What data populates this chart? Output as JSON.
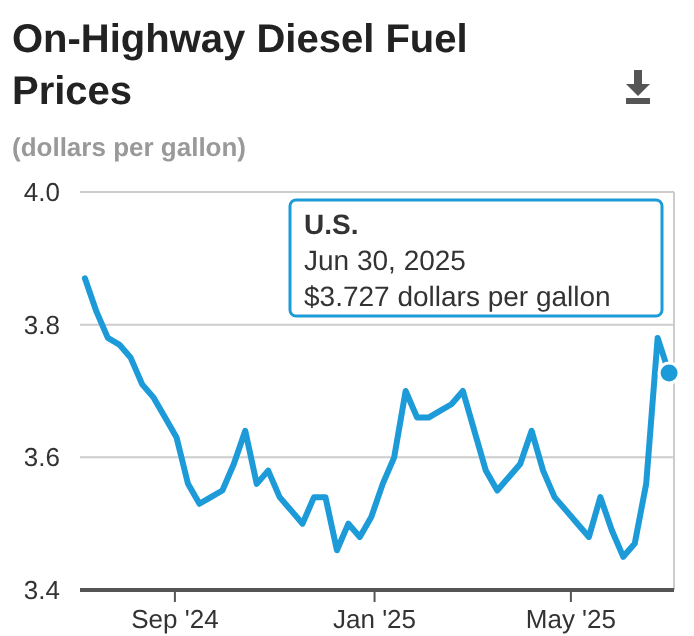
{
  "chart_data": {
    "type": "line",
    "title": "On-Highway Diesel Fuel Prices",
    "ylabel": "(dollars per gallon)",
    "x": [
      "2024-07-08",
      "2024-07-15",
      "2024-07-22",
      "2024-07-29",
      "2024-08-05",
      "2024-08-12",
      "2024-08-19",
      "2024-08-26",
      "2024-09-02",
      "2024-09-09",
      "2024-09-16",
      "2024-09-23",
      "2024-09-30",
      "2024-10-07",
      "2024-10-14",
      "2024-10-21",
      "2024-10-28",
      "2024-11-04",
      "2024-11-11",
      "2024-11-18",
      "2024-11-25",
      "2024-12-02",
      "2024-12-09",
      "2024-12-16",
      "2024-12-23",
      "2024-12-30",
      "2025-01-06",
      "2025-01-13",
      "2025-01-20",
      "2025-01-27",
      "2025-02-03",
      "2025-02-10",
      "2025-02-17",
      "2025-02-24",
      "2025-03-03",
      "2025-03-10",
      "2025-03-17",
      "2025-03-24",
      "2025-03-31",
      "2025-04-07",
      "2025-04-14",
      "2025-04-21",
      "2025-04-28",
      "2025-05-05",
      "2025-05-12",
      "2025-05-19",
      "2025-05-26",
      "2025-06-02",
      "2025-06-09",
      "2025-06-16",
      "2025-06-23",
      "2025-06-30"
    ],
    "series": [
      {
        "color": "#1d9bd9",
        "values": [
          3.87,
          3.82,
          3.78,
          3.77,
          3.75,
          3.71,
          3.69,
          3.66,
          3.63,
          3.56,
          3.53,
          3.54,
          3.55,
          3.59,
          3.64,
          3.56,
          3.58,
          3.54,
          3.52,
          3.5,
          3.54,
          3.54,
          3.46,
          3.5,
          3.48,
          3.51,
          3.56,
          3.6,
          3.7,
          3.66,
          3.66,
          3.67,
          3.68,
          3.7,
          3.64,
          3.58,
          3.55,
          3.57,
          3.59,
          3.64,
          3.58,
          3.54,
          3.52,
          3.5,
          3.48,
          3.54,
          3.49,
          3.45,
          3.47,
          3.56,
          3.78,
          3.727
        ]
      }
    ],
    "xlim": [
      "2024-07-05",
      "2025-07-03"
    ],
    "xticks": [
      {
        "value": "2024-09-01",
        "label": "Sep '24"
      },
      {
        "value": "2025-01-01",
        "label": "Jan '25"
      },
      {
        "value": "2025-05-01",
        "label": "May '25"
      }
    ],
    "ylim": [
      3.4,
      4.0
    ],
    "yticks": [
      {
        "value": 3.4,
        "label": "3.4"
      },
      {
        "value": 3.6,
        "label": "3.6"
      },
      {
        "value": 3.8,
        "label": "3.8"
      },
      {
        "value": 4.0,
        "label": "4.0"
      }
    ],
    "grid": "y",
    "marker": "none",
    "line_style": "solid",
    "annotations": [
      "U.S.\nJun 30, 2025\n$3.727 dollars per gallon"
    ]
  }
}
